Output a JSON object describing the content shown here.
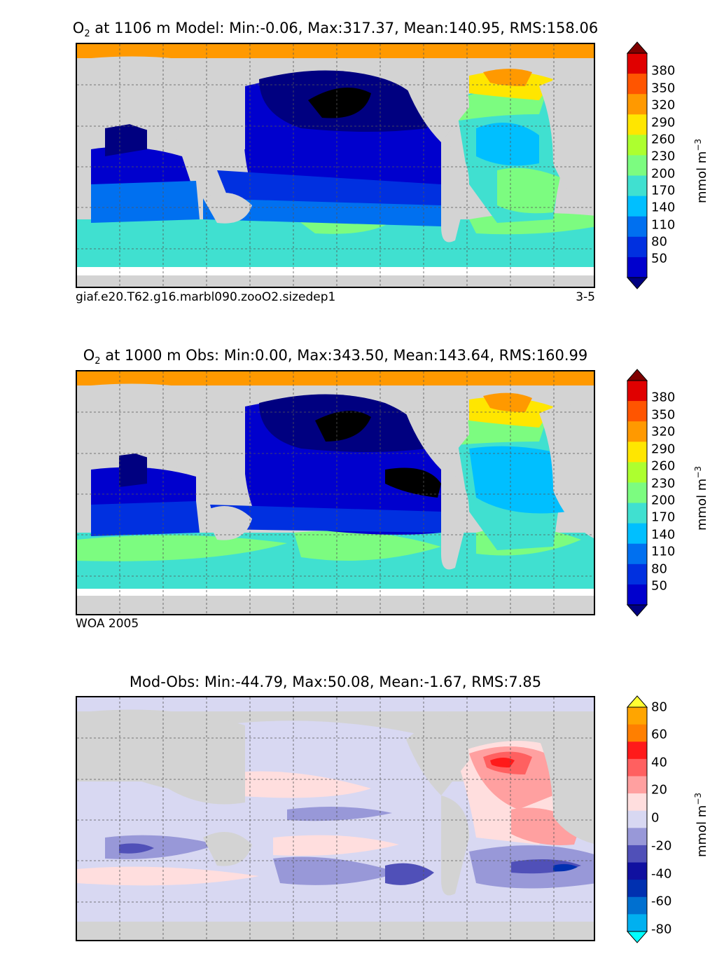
{
  "panels": [
    {
      "title_main": "O",
      "title_sub": "2",
      "title_rest": " at 1106 m Model: Min:-0.06, Max:317.37, Mean:140.95, RMS:158.06",
      "caption_left": "giaf.e20.T62.g16.marbl090.zooO2.sizedep1",
      "caption_right": "3-5",
      "colorbar": {
        "ticks": [
          "380",
          "350",
          "320",
          "290",
          "260",
          "230",
          "200",
          "170",
          "140",
          "110",
          "80",
          "50"
        ],
        "units": "mmol m",
        "units_sup": "−3",
        "colors": [
          "#000080",
          "#0000cd",
          "#0030e0",
          "#0070f0",
          "#00bfff",
          "#40e0d0",
          "#7cfc80",
          "#adff2f",
          "#ffe600",
          "#ff9900",
          "#ff5500",
          "#e00000",
          "#800000"
        ]
      }
    },
    {
      "title_main": "O",
      "title_sub": "2",
      "title_rest": " at 1000 m Obs: Min:0.00, Max:343.50, Mean:143.64, RMS:160.99",
      "caption_left": "WOA 2005",
      "caption_right": "",
      "colorbar": {
        "ticks": [
          "380",
          "350",
          "320",
          "290",
          "260",
          "230",
          "200",
          "170",
          "140",
          "110",
          "80",
          "50"
        ],
        "units": "mmol m",
        "units_sup": "−3",
        "colors": [
          "#000080",
          "#0000cd",
          "#0030e0",
          "#0070f0",
          "#00bfff",
          "#40e0d0",
          "#7cfc80",
          "#adff2f",
          "#ffe600",
          "#ff9900",
          "#ff5500",
          "#e00000",
          "#800000"
        ]
      }
    },
    {
      "title_main": "Mod-Obs: Min:-44.79, Max:50.08, Mean:-1.67, RMS:7.85",
      "title_sub": "",
      "title_rest": "",
      "caption_left": "",
      "caption_right": "",
      "colorbar": {
        "ticks": [
          "80",
          "60",
          "40",
          "20",
          "0",
          "-20",
          "-40",
          "-60",
          "-80"
        ],
        "units": "mmol m",
        "units_sup": "−3",
        "colors": [
          "#00ffff",
          "#00b0f0",
          "#0070d0",
          "#0030b0",
          "#1010a0",
          "#5050b8",
          "#9898d8",
          "#d8d8f2",
          "#ffdede",
          "#ffa0a0",
          "#ff6060",
          "#ff1a1a",
          "#ff7f00",
          "#ffa500",
          "#ffff33"
        ]
      }
    }
  ]
}
